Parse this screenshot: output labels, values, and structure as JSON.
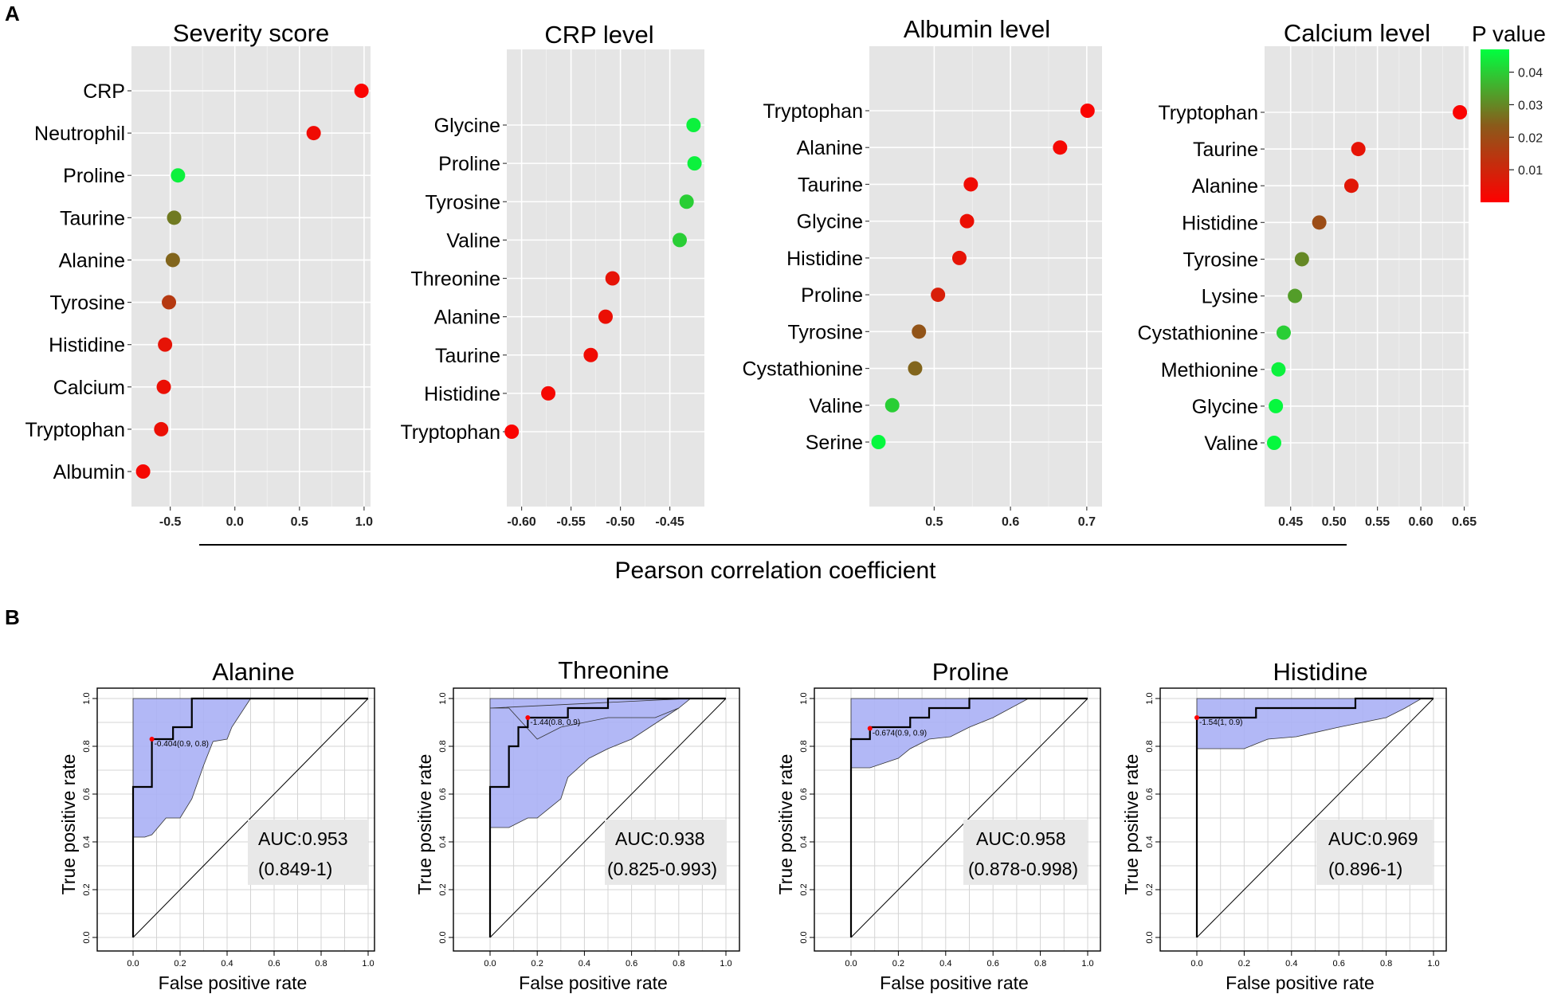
{
  "panel_labels": {
    "a": "A",
    "b": "B"
  },
  "shared_xlabel": "Pearson correlation coefficient",
  "legend": {
    "title": "P value",
    "ticks": [
      "0.04",
      "0.03",
      "0.02",
      "0.01"
    ],
    "tick_values": [
      0.04,
      0.03,
      0.02,
      0.01
    ],
    "range": [
      0.0,
      0.047
    ],
    "colors": {
      "low": "#ff0000",
      "mid": "#8b5a1a",
      "high": "#00ff40"
    }
  },
  "chart_data": [
    {
      "type": "scatter",
      "title": "Severity score",
      "xlabel": "Pearson correlation coefficient",
      "xlim": [
        -0.8,
        1.05
      ],
      "ticks": [
        -0.5,
        0.0,
        0.5,
        1.0
      ],
      "tick_labels": [
        "-0.5",
        "0.0",
        "0.5",
        "1.0"
      ],
      "categories": [
        "CRP",
        "Neutrophil",
        "Proline",
        "Taurine",
        "Alanine",
        "Tyrosine",
        "Histidine",
        "Calcium",
        "Tryptophan",
        "Albumin"
      ],
      "values": [
        0.98,
        0.61,
        -0.44,
        -0.47,
        -0.48,
        -0.51,
        -0.54,
        -0.55,
        -0.57,
        -0.71
      ],
      "pvalues": [
        0.001,
        0.003,
        0.045,
        0.028,
        0.025,
        0.015,
        0.005,
        0.004,
        0.004,
        0.002
      ]
    },
    {
      "type": "scatter",
      "title": "CRP level",
      "xlabel": "Pearson correlation coefficient",
      "xlim": [
        -0.615,
        -0.415
      ],
      "ticks": [
        -0.6,
        -0.55,
        -0.5,
        -0.45
      ],
      "tick_labels": [
        "-0.60",
        "-0.55",
        "-0.50",
        "-0.45"
      ],
      "categories": [
        "Glycine",
        "Proline",
        "Tyrosine",
        "Valine",
        "Threonine",
        "Alanine",
        "Taurine",
        "Histidine",
        "Tryptophan"
      ],
      "values": [
        -0.426,
        -0.425,
        -0.433,
        -0.44,
        -0.508,
        -0.515,
        -0.53,
        -0.573,
        -0.61
      ],
      "pvalues": [
        0.045,
        0.045,
        0.04,
        0.04,
        0.005,
        0.004,
        0.003,
        0.002,
        0.001
      ]
    },
    {
      "type": "scatter",
      "title": "Albumin level",
      "xlabel": "Pearson correlation coefficient",
      "xlim": [
        0.415,
        0.72
      ],
      "ticks": [
        0.5,
        0.6,
        0.7
      ],
      "tick_labels": [
        "0.5",
        "0.6",
        "0.7"
      ],
      "categories": [
        "Tryptophan",
        "Alanine",
        "Taurine",
        "Glycine",
        "Histidine",
        "Proline",
        "Tyrosine",
        "Cystathionine",
        "Valine",
        "Serine"
      ],
      "values": [
        0.701,
        0.665,
        0.548,
        0.543,
        0.533,
        0.505,
        0.48,
        0.475,
        0.445,
        0.427
      ],
      "pvalues": [
        0.001,
        0.002,
        0.003,
        0.004,
        0.005,
        0.008,
        0.022,
        0.025,
        0.04,
        0.046
      ]
    },
    {
      "type": "scatter",
      "title": "Calcium level",
      "xlabel": "Pearson correlation coefficient",
      "xlim": [
        0.42,
        0.655
      ],
      "ticks": [
        0.45,
        0.5,
        0.55,
        0.6,
        0.65
      ],
      "tick_labels": [
        "0.45",
        "0.50",
        "0.55",
        "0.60",
        "0.65"
      ],
      "categories": [
        "Tryptophan",
        "Taurine",
        "Alanine",
        "Histidine",
        "Tyrosine",
        "Lysine",
        "Cystathionine",
        "Methionine",
        "Glycine",
        "Valine"
      ],
      "values": [
        0.645,
        0.528,
        0.52,
        0.483,
        0.463,
        0.455,
        0.442,
        0.436,
        0.433,
        0.431
      ],
      "pvalues": [
        0.001,
        0.005,
        0.006,
        0.02,
        0.03,
        0.033,
        0.04,
        0.045,
        0.046,
        0.046
      ]
    },
    {
      "type": "line",
      "title": "Alanine",
      "xlabel": "False positive rate",
      "ylabel": "True positive rate",
      "xlim": [
        0,
        1
      ],
      "ylim": [
        0,
        1
      ],
      "ticks": [
        0.0,
        0.2,
        0.4,
        0.6,
        0.8,
        1.0
      ],
      "tick_labels": [
        "0.0",
        "0.2",
        "0.4",
        "0.6",
        "0.8",
        "1.0"
      ],
      "roc_x": [
        0,
        0,
        0.08,
        0.08,
        0.17,
        0.17,
        0.25,
        0.25,
        1.0
      ],
      "roc_y": [
        0,
        0.63,
        0.63,
        0.83,
        0.83,
        0.88,
        0.88,
        1.0,
        1.0
      ],
      "ci_upper_x": [
        0,
        0.5
      ],
      "ci_upper_y": [
        1.0,
        1.0
      ],
      "ci_lower_x": [
        0.5,
        0.42,
        0.4,
        0.34,
        0.3,
        0.25,
        0.2,
        0.14,
        0.08,
        0.05,
        0
      ],
      "ci_lower_y": [
        1.0,
        0.88,
        0.83,
        0.82,
        0.72,
        0.58,
        0.5,
        0.5,
        0.43,
        0.42,
        0.42
      ],
      "best_point": {
        "x": 0.08,
        "y": 0.83,
        "label": "-0.404(0.9, 0.8)"
      },
      "auc": "AUC:0.953",
      "auc_ci": "(0.849-1)"
    },
    {
      "type": "line",
      "title": "Threonine",
      "xlabel": "False positive rate",
      "ylabel": "True positive rate",
      "xlim": [
        0,
        1
      ],
      "ylim": [
        0,
        1
      ],
      "ticks": [
        0.0,
        0.2,
        0.4,
        0.6,
        0.8,
        1.0
      ],
      "tick_labels": [
        "0.0",
        "0.2",
        "0.4",
        "0.6",
        "0.8",
        "1.0"
      ],
      "roc_x": [
        0,
        0,
        0.08,
        0.08,
        0.12,
        0.12,
        0.16,
        0.16,
        0.33,
        0.33,
        0.5,
        0.5,
        1.0
      ],
      "roc_y": [
        0,
        0.63,
        0.63,
        0.8,
        0.8,
        0.88,
        0.88,
        0.92,
        0.92,
        0.96,
        0.96,
        1.0,
        1.0
      ],
      "ci_upper_x": [
        0,
        0.85,
        0.8,
        0.7,
        0.5,
        0.3,
        0.2,
        0.08,
        0
      ],
      "ci_upper_y": [
        1.0,
        1.0,
        0.96,
        0.92,
        0.92,
        0.88,
        0.83,
        0.96,
        0.96
      ],
      "ci_lower_x": [
        0.85,
        0.8,
        0.6,
        0.5,
        0.42,
        0.33,
        0.3,
        0.2,
        0.16,
        0.08,
        0
      ],
      "ci_lower_y": [
        1.0,
        0.96,
        0.83,
        0.79,
        0.75,
        0.67,
        0.58,
        0.5,
        0.5,
        0.46,
        0.46
      ],
      "best_point": {
        "x": 0.16,
        "y": 0.92,
        "label": "-1.44(0.8, 0.9)"
      },
      "auc": "AUC:0.938",
      "auc_ci": "(0.825-0.993)"
    },
    {
      "type": "line",
      "title": "Proline",
      "xlabel": "False positive rate",
      "ylabel": "True positive rate",
      "xlim": [
        0,
        1
      ],
      "ylim": [
        0,
        1
      ],
      "ticks": [
        0.0,
        0.2,
        0.4,
        0.6,
        0.8,
        1.0
      ],
      "tick_labels": [
        "0.0",
        "0.2",
        "0.4",
        "0.6",
        "0.8",
        "1.0"
      ],
      "roc_x": [
        0,
        0,
        0.08,
        0.08,
        0.25,
        0.25,
        0.33,
        0.33,
        0.42,
        0.42,
        0.5,
        0.5,
        1.0
      ],
      "roc_y": [
        0,
        0.83,
        0.83,
        0.88,
        0.88,
        0.92,
        0.92,
        0.96,
        0.96,
        0.96,
        0.96,
        1.0,
        1.0
      ],
      "ci_upper_x": [
        0,
        0.75
      ],
      "ci_upper_y": [
        1.0,
        1.0
      ],
      "ci_lower_x": [
        0.75,
        0.6,
        0.5,
        0.42,
        0.33,
        0.25,
        0.2,
        0.08,
        0
      ],
      "ci_lower_y": [
        1.0,
        0.92,
        0.88,
        0.84,
        0.83,
        0.79,
        0.75,
        0.71,
        0.71
      ],
      "best_point": {
        "x": 0.08,
        "y": 0.875,
        "label": "-0.674(0.9, 0.9)"
      },
      "auc": "AUC:0.958",
      "auc_ci": "(0.878-0.998)"
    },
    {
      "type": "line",
      "title": "Histidine",
      "xlabel": "False positive rate",
      "ylabel": "True positive rate",
      "xlim": [
        0,
        1
      ],
      "ylim": [
        0,
        1
      ],
      "ticks": [
        0.0,
        0.2,
        0.4,
        0.6,
        0.8,
        1.0
      ],
      "tick_labels": [
        "0.0",
        "0.2",
        "0.4",
        "0.6",
        "0.8",
        "1.0"
      ],
      "roc_x": [
        0,
        0,
        0.25,
        0.25,
        0.67,
        0.67,
        1.0
      ],
      "roc_y": [
        0,
        0.92,
        0.92,
        0.96,
        0.96,
        1.0,
        1.0
      ],
      "ci_upper_x": [
        0,
        0.95
      ],
      "ci_upper_y": [
        1.0,
        1.0
      ],
      "ci_lower_x": [
        0.95,
        0.88,
        0.8,
        0.6,
        0.42,
        0.3,
        0.2,
        0
      ],
      "ci_lower_y": [
        1.0,
        0.96,
        0.92,
        0.88,
        0.84,
        0.83,
        0.79,
        0.79
      ],
      "best_point": {
        "x": 0.0,
        "y": 0.92,
        "label": "-1.54(1, 0.9)"
      },
      "auc": "AUC:0.969",
      "auc_ci": "(0.896-1)"
    }
  ]
}
